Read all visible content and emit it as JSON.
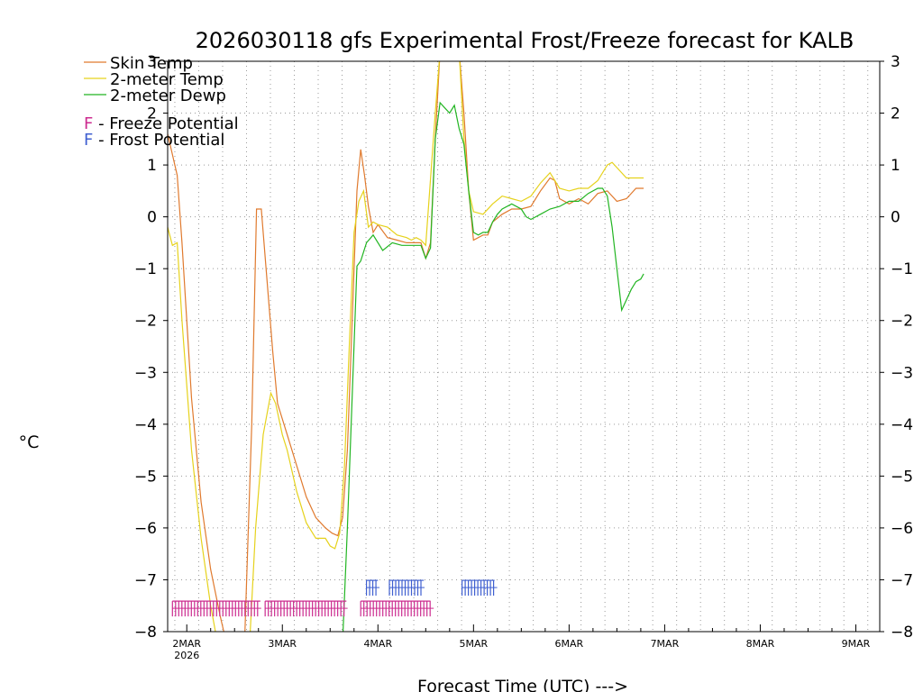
{
  "chart_data": {
    "type": "line",
    "title": "2026030118 gfs Experimental Frost/Freeze forecast for KALB",
    "xlabel": "Forecast Time (UTC) --->",
    "ylabel": "°C",
    "ylim": [
      -8,
      3
    ],
    "xlim": [
      -0.2,
      7.25
    ],
    "yticks": [
      3,
      2,
      1,
      0,
      -1,
      -2,
      -3,
      -4,
      -5,
      -6,
      -7,
      -8
    ],
    "date_ticks": [
      {
        "day": 0,
        "label": "2MAR",
        "sub": "2026"
      },
      {
        "day": 1,
        "label": "3MAR",
        "sub": ""
      },
      {
        "day": 2,
        "label": "4MAR",
        "sub": ""
      },
      {
        "day": 3,
        "label": "5MAR",
        "sub": ""
      },
      {
        "day": 4,
        "label": "6MAR",
        "sub": ""
      },
      {
        "day": 5,
        "label": "7MAR",
        "sub": ""
      },
      {
        "day": 6,
        "label": "8MAR",
        "sub": ""
      },
      {
        "day": 7,
        "label": "9MAR",
        "sub": ""
      }
    ],
    "legend": [
      {
        "label": "Skin Temp",
        "color": "#e07a2e"
      },
      {
        "label": "2-meter Temp",
        "color": "#e6d21c"
      },
      {
        "label": "2-meter Dewp",
        "color": "#22b522"
      }
    ],
    "potential_legend": [
      {
        "symbol": "F",
        "text": " - Freeze Potential",
        "color": "#cc2b8f"
      },
      {
        "symbol": "F",
        "text": " - Frost Potential",
        "color": "#3f5fd0"
      }
    ],
    "series": [
      {
        "name": "Skin Temp",
        "color": "#e07a2e",
        "points": [
          [
            -0.2,
            1.6
          ],
          [
            -0.1,
            0.8
          ],
          [
            -0.05,
            -0.5
          ],
          [
            0.05,
            -3.5
          ],
          [
            0.15,
            -5.5
          ],
          [
            0.25,
            -6.8
          ],
          [
            0.35,
            -7.7
          ],
          [
            0.45,
            -8.5
          ],
          [
            0.6,
            -8.5
          ],
          [
            0.68,
            -4.0
          ],
          [
            0.73,
            0.15
          ],
          [
            0.78,
            0.15
          ],
          [
            0.83,
            -1.0
          ],
          [
            0.9,
            -2.6
          ],
          [
            0.95,
            -3.6
          ],
          [
            1.05,
            -4.2
          ],
          [
            1.15,
            -4.8
          ],
          [
            1.25,
            -5.4
          ],
          [
            1.35,
            -5.8
          ],
          [
            1.45,
            -6.0
          ],
          [
            1.52,
            -6.1
          ],
          [
            1.58,
            -6.15
          ],
          [
            1.63,
            -5.8
          ],
          [
            1.68,
            -4.5
          ],
          [
            1.73,
            -2.0
          ],
          [
            1.78,
            0.5
          ],
          [
            1.82,
            1.3
          ],
          [
            1.86,
            0.8
          ],
          [
            1.9,
            0.2
          ],
          [
            1.95,
            -0.3
          ],
          [
            2.0,
            -0.15
          ],
          [
            2.1,
            -0.4
          ],
          [
            2.2,
            -0.45
          ],
          [
            2.3,
            -0.5
          ],
          [
            2.4,
            -0.5
          ],
          [
            2.45,
            -0.5
          ],
          [
            2.5,
            -0.8
          ],
          [
            2.55,
            -0.5
          ],
          [
            2.6,
            1.5
          ],
          [
            2.65,
            3.2
          ],
          [
            2.85,
            3.2
          ],
          [
            2.9,
            2.0
          ],
          [
            2.95,
            0.5
          ],
          [
            3.0,
            -0.45
          ],
          [
            3.1,
            -0.35
          ],
          [
            3.15,
            -0.35
          ],
          [
            3.2,
            -0.1
          ],
          [
            3.3,
            0.05
          ],
          [
            3.4,
            0.15
          ],
          [
            3.5,
            0.15
          ],
          [
            3.6,
            0.2
          ],
          [
            3.7,
            0.5
          ],
          [
            3.8,
            0.75
          ],
          [
            3.85,
            0.7
          ],
          [
            3.9,
            0.35
          ],
          [
            4.0,
            0.25
          ],
          [
            4.1,
            0.35
          ],
          [
            4.2,
            0.25
          ],
          [
            4.3,
            0.45
          ],
          [
            4.4,
            0.5
          ],
          [
            4.5,
            0.3
          ],
          [
            4.6,
            0.35
          ],
          [
            4.7,
            0.55
          ],
          [
            4.78,
            0.55
          ]
        ]
      },
      {
        "name": "2-meter Temp",
        "color": "#e6d21c",
        "points": [
          [
            -0.2,
            -0.2
          ],
          [
            -0.15,
            -0.55
          ],
          [
            -0.1,
            -0.5
          ],
          [
            -0.05,
            -2.0
          ],
          [
            0.05,
            -4.5
          ],
          [
            0.15,
            -6.2
          ],
          [
            0.25,
            -7.5
          ],
          [
            0.35,
            -8.5
          ],
          [
            0.65,
            -8.5
          ],
          [
            0.72,
            -6.0
          ],
          [
            0.8,
            -4.2
          ],
          [
            0.88,
            -3.4
          ],
          [
            0.93,
            -3.6
          ],
          [
            1.0,
            -4.2
          ],
          [
            1.05,
            -4.5
          ],
          [
            1.15,
            -5.3
          ],
          [
            1.25,
            -5.9
          ],
          [
            1.35,
            -6.2
          ],
          [
            1.45,
            -6.2
          ],
          [
            1.5,
            -6.35
          ],
          [
            1.55,
            -6.4
          ],
          [
            1.6,
            -6.1
          ],
          [
            1.65,
            -4.8
          ],
          [
            1.7,
            -2.5
          ],
          [
            1.75,
            -0.3
          ],
          [
            1.8,
            0.3
          ],
          [
            1.85,
            0.5
          ],
          [
            1.9,
            -0.2
          ],
          [
            1.95,
            -0.1
          ],
          [
            2.0,
            -0.15
          ],
          [
            2.1,
            -0.2
          ],
          [
            2.2,
            -0.35
          ],
          [
            2.3,
            -0.4
          ],
          [
            2.35,
            -0.45
          ],
          [
            2.4,
            -0.4
          ],
          [
            2.45,
            -0.45
          ],
          [
            2.5,
            -0.55
          ],
          [
            2.6,
            2.0
          ],
          [
            2.65,
            3.2
          ],
          [
            2.85,
            3.2
          ],
          [
            2.9,
            1.5
          ],
          [
            2.95,
            0.5
          ],
          [
            3.0,
            0.1
          ],
          [
            3.1,
            0.05
          ],
          [
            3.2,
            0.25
          ],
          [
            3.3,
            0.4
          ],
          [
            3.4,
            0.35
          ],
          [
            3.5,
            0.3
          ],
          [
            3.6,
            0.4
          ],
          [
            3.7,
            0.65
          ],
          [
            3.8,
            0.85
          ],
          [
            3.9,
            0.55
          ],
          [
            4.0,
            0.5
          ],
          [
            4.1,
            0.55
          ],
          [
            4.2,
            0.55
          ],
          [
            4.3,
            0.7
          ],
          [
            4.4,
            1.0
          ],
          [
            4.45,
            1.05
          ],
          [
            4.5,
            0.95
          ],
          [
            4.6,
            0.75
          ],
          [
            4.7,
            0.75
          ],
          [
            4.78,
            0.75
          ]
        ]
      },
      {
        "name": "2-meter Dewp",
        "color": "#22b522",
        "points": [
          [
            1.63,
            -8.2
          ],
          [
            1.68,
            -6.0
          ],
          [
            1.72,
            -4.0
          ],
          [
            1.78,
            -0.95
          ],
          [
            1.82,
            -0.85
          ],
          [
            1.88,
            -0.5
          ],
          [
            1.95,
            -0.35
          ],
          [
            2.05,
            -0.65
          ],
          [
            2.15,
            -0.5
          ],
          [
            2.25,
            -0.55
          ],
          [
            2.35,
            -0.55
          ],
          [
            2.45,
            -0.55
          ],
          [
            2.5,
            -0.8
          ],
          [
            2.55,
            -0.6
          ],
          [
            2.6,
            1.5
          ],
          [
            2.65,
            2.2
          ],
          [
            2.7,
            2.1
          ],
          [
            2.75,
            2.0
          ],
          [
            2.8,
            2.15
          ],
          [
            2.85,
            1.7
          ],
          [
            2.9,
            1.4
          ],
          [
            2.95,
            0.5
          ],
          [
            3.0,
            -0.3
          ],
          [
            3.05,
            -0.35
          ],
          [
            3.1,
            -0.3
          ],
          [
            3.15,
            -0.3
          ],
          [
            3.2,
            -0.1
          ],
          [
            3.25,
            0.05
          ],
          [
            3.3,
            0.15
          ],
          [
            3.4,
            0.25
          ],
          [
            3.5,
            0.15
          ],
          [
            3.55,
            0.0
          ],
          [
            3.6,
            -0.05
          ],
          [
            3.7,
            0.05
          ],
          [
            3.8,
            0.15
          ],
          [
            3.9,
            0.2
          ],
          [
            4.0,
            0.3
          ],
          [
            4.1,
            0.3
          ],
          [
            4.2,
            0.45
          ],
          [
            4.3,
            0.55
          ],
          [
            4.35,
            0.55
          ],
          [
            4.4,
            0.4
          ],
          [
            4.45,
            -0.2
          ],
          [
            4.5,
            -1.0
          ],
          [
            4.55,
            -1.8
          ],
          [
            4.6,
            -1.6
          ],
          [
            4.65,
            -1.4
          ],
          [
            4.7,
            -1.25
          ],
          [
            4.75,
            -1.2
          ],
          [
            4.78,
            -1.1
          ]
        ]
      }
    ],
    "freeze_markers": {
      "symbol": "F",
      "color": "#cc2b8f",
      "y": -7.55,
      "ranges": [
        [
          -0.15,
          0.77
        ],
        [
          0.82,
          1.67
        ],
        [
          1.82,
          2.55
        ]
      ],
      "step": 0.033
    },
    "frost_markers": {
      "symbol": "F",
      "color": "#3f5fd0",
      "y": -7.15,
      "ranges": [
        [
          1.88,
          2.0
        ],
        [
          2.12,
          2.48
        ],
        [
          2.88,
          3.22
        ]
      ],
      "step": 0.033
    }
  }
}
